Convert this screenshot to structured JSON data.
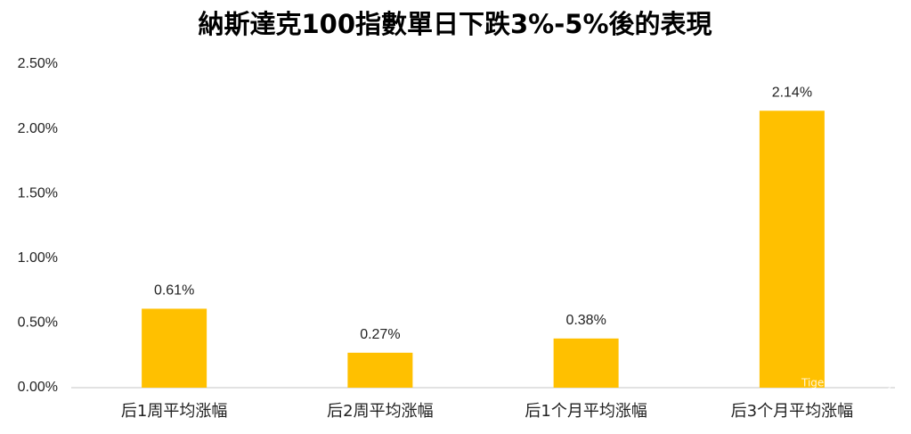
{
  "chart_data": {
    "type": "bar",
    "title": "納斯達克100指數單日下跌3%-5%後的表現",
    "categories": [
      "后1周平均涨幅",
      "后2周平均涨幅",
      "后1个月平均涨幅",
      "后3个月平均涨幅"
    ],
    "values": [
      0.61,
      0.27,
      0.38,
      2.14
    ],
    "value_labels": [
      "0.61%",
      "0.27%",
      "0.38%",
      "2.14%"
    ],
    "color": "#FFC000",
    "ylim": [
      0,
      2.5
    ],
    "yticks": [
      {
        "value": 0,
        "label": "0.00%"
      },
      {
        "value": 0.5,
        "label": "0.50%"
      },
      {
        "value": 1,
        "label": "1.00%"
      },
      {
        "value": 1.5,
        "label": "1.50%"
      },
      {
        "value": 2,
        "label": "2.00%"
      },
      {
        "value": 2.5,
        "label": "2.50%"
      }
    ],
    "grid": false,
    "watermark": "Tiger Community"
  }
}
